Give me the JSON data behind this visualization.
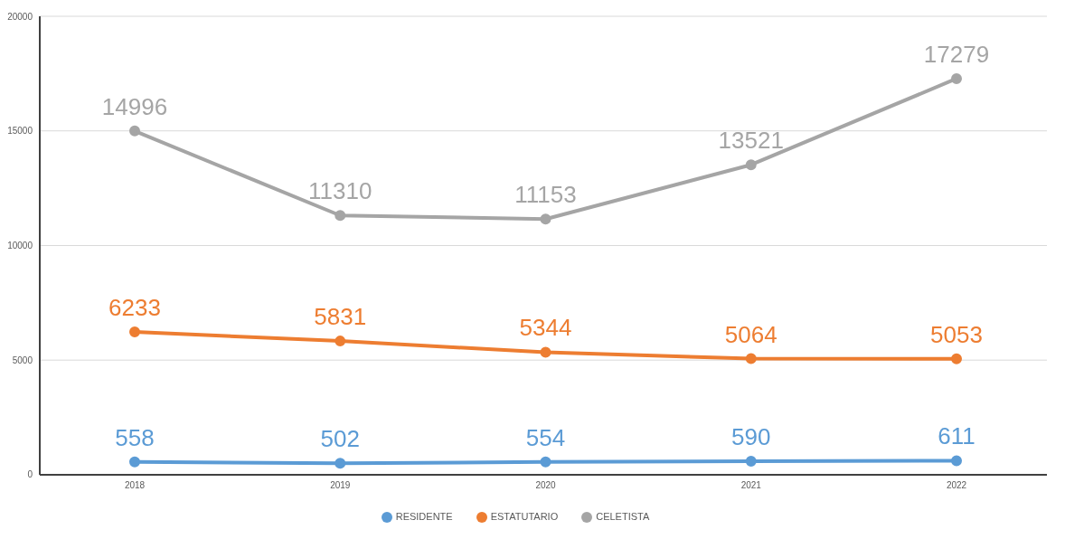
{
  "chart_data": {
    "type": "line",
    "categories": [
      "2018",
      "2019",
      "2020",
      "2021",
      "2022"
    ],
    "series": [
      {
        "name": "RESIDENTE",
        "color": "#5b9bd5",
        "values": [
          558,
          502,
          554,
          590,
          611
        ]
      },
      {
        "name": "ESTATUTARIO",
        "color": "#ed7d31",
        "values": [
          6233,
          5831,
          5344,
          5064,
          5053
        ]
      },
      {
        "name": "CELETISTA",
        "color": "#a5a5a5",
        "values": [
          14996,
          11310,
          11153,
          13521,
          17279
        ]
      }
    ],
    "ylim": [
      0,
      20000
    ],
    "yticks": [
      0,
      5000,
      10000,
      15000,
      20000
    ],
    "grid": "y",
    "legend": "bottom",
    "marker": "circle",
    "line_style": "solid",
    "data_labels": true
  }
}
